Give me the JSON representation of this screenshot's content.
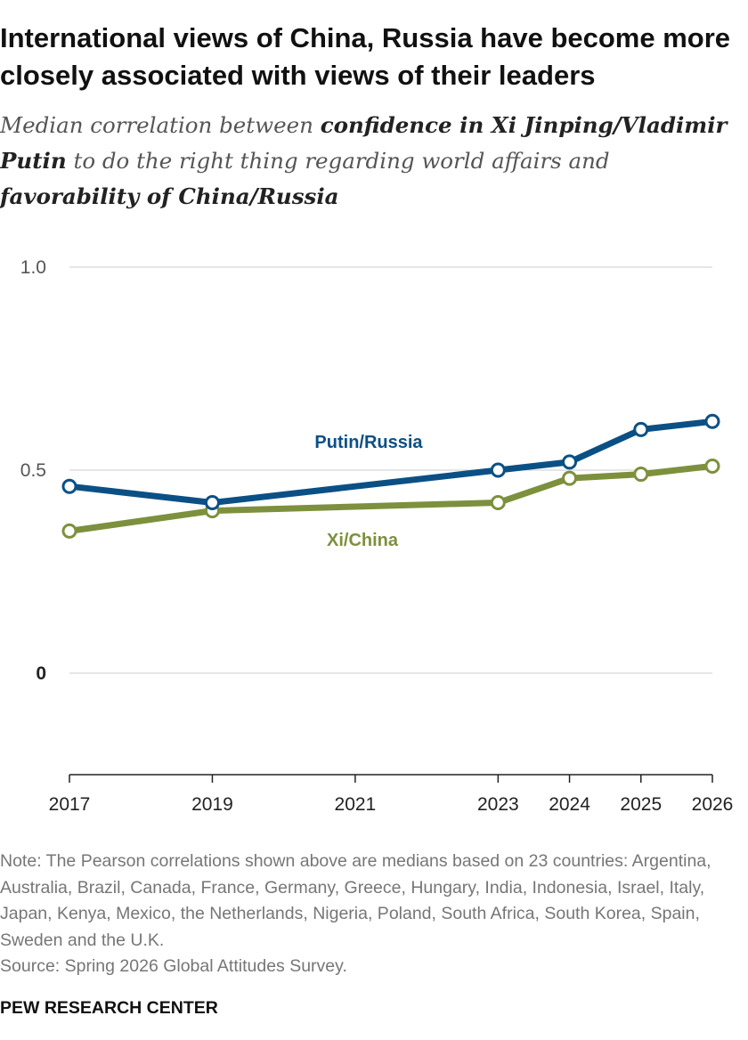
{
  "header": {
    "title": "International views of China, Russia have become more closely associated with views of their leaders",
    "subtitle_parts": [
      {
        "text": "Median correlation between ",
        "bold": false
      },
      {
        "text": "confidence in Xi Jinping/Vladimir Putin",
        "bold": true
      },
      {
        "text": " to do the right thing regarding world affairs and ",
        "bold": false
      },
      {
        "text": "favorability of China/Russia",
        "bold": true
      }
    ]
  },
  "chart_data": {
    "type": "line",
    "title": "International views of China, Russia have become more closely associated with views of their leaders",
    "xlabel": "",
    "ylabel": "",
    "ylim": [
      -0.2,
      1.0
    ],
    "y_ticks": [
      {
        "value": 1.0,
        "label": "1.0"
      },
      {
        "value": 0.5,
        "label": "0.5"
      },
      {
        "value": 0,
        "label": "0"
      }
    ],
    "x_ticks": [
      2017,
      2019,
      2021,
      2023,
      2024,
      2025,
      2026
    ],
    "grid": true,
    "legend": "inline labels",
    "series": [
      {
        "name": "Putin/Russia",
        "color": "#0b5085",
        "x": [
          2017,
          2019,
          2023,
          2024,
          2025,
          2026
        ],
        "values": [
          0.46,
          0.42,
          0.5,
          0.52,
          0.6,
          0.62
        ]
      },
      {
        "name": "Xi/China",
        "color": "#7d903d",
        "x": [
          2017,
          2019,
          2023,
          2024,
          2025,
          2026
        ],
        "values": [
          0.35,
          0.4,
          0.42,
          0.48,
          0.49,
          0.51
        ]
      }
    ]
  },
  "footer": {
    "note": "Note: The Pearson correlations shown above are medians based on 23 countries: Argentina, Australia, Brazil, Canada, France, Germany, Greece, Hungary, India, Indonesia, Israel, Italy, Japan, Kenya, Mexico, the Netherlands, Nigeria, Poland, South Africa, South Korea, Spain, Sweden and the U.K.",
    "source": "Source: Spring 2026 Global Attitudes Survey.",
    "brand": "PEW RESEARCH CENTER"
  }
}
